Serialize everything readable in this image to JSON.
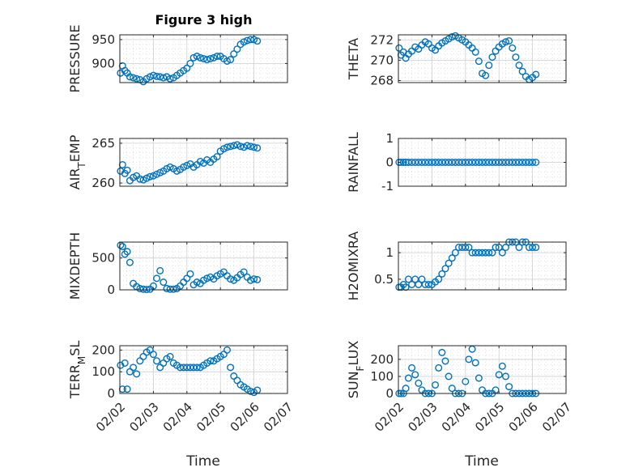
{
  "chart_data": [
    {
      "type": "scatter",
      "title": "Figure 3 high",
      "ylabel": "PRESSURE",
      "xlim": [
        0,
        5
      ],
      "ylim": [
        860,
        960
      ],
      "yticks": [
        {
          "v": 900,
          "label": "900"
        },
        {
          "v": 950,
          "label": "950"
        }
      ],
      "xticks": [
        {
          "v": 0,
          "label": "02/02"
        },
        {
          "v": 1,
          "label": "02/03"
        },
        {
          "v": 2,
          "label": "02/04"
        },
        {
          "v": 3,
          "label": "02/05"
        },
        {
          "v": 4,
          "label": "02/06"
        },
        {
          "v": 5,
          "label": "02/07"
        }
      ],
      "x": [
        0.02,
        0.08,
        0.15,
        0.22,
        0.3,
        0.4,
        0.5,
        0.6,
        0.7,
        0.8,
        0.9,
        1.0,
        1.1,
        1.2,
        1.3,
        1.4,
        1.5,
        1.6,
        1.7,
        1.8,
        1.9,
        2.0,
        2.1,
        2.2,
        2.3,
        2.4,
        2.5,
        2.6,
        2.7,
        2.8,
        2.9,
        3.0,
        3.1,
        3.2,
        3.3,
        3.4,
        3.5,
        3.6,
        3.7,
        3.8,
        3.9,
        4.0,
        4.1
      ],
      "y": [
        880,
        895,
        885,
        880,
        872,
        870,
        868,
        866,
        862,
        868,
        872,
        875,
        873,
        872,
        870,
        872,
        868,
        870,
        875,
        880,
        885,
        890,
        900,
        912,
        915,
        912,
        910,
        908,
        910,
        912,
        915,
        915,
        910,
        905,
        908,
        920,
        930,
        940,
        945,
        948,
        950,
        950,
        947
      ]
    },
    {
      "type": "scatter",
      "ylabel": "THETA",
      "xlim": [
        0,
        5
      ],
      "ylim": [
        267.8,
        272.5
      ],
      "yticks": [
        {
          "v": 268,
          "label": "268"
        },
        {
          "v": 270,
          "label": "270"
        },
        {
          "v": 272,
          "label": "272"
        }
      ],
      "xticks": [
        {
          "v": 0,
          "label": "02/02"
        },
        {
          "v": 1,
          "label": "02/03"
        },
        {
          "v": 2,
          "label": "02/04"
        },
        {
          "v": 3,
          "label": "02/05"
        },
        {
          "v": 4,
          "label": "02/06"
        },
        {
          "v": 5,
          "label": "02/07"
        }
      ],
      "x": [
        0.02,
        0.08,
        0.15,
        0.22,
        0.3,
        0.4,
        0.5,
        0.6,
        0.7,
        0.8,
        0.9,
        1.0,
        1.1,
        1.2,
        1.3,
        1.4,
        1.5,
        1.6,
        1.7,
        1.8,
        1.9,
        2.0,
        2.1,
        2.2,
        2.3,
        2.4,
        2.5,
        2.6,
        2.7,
        2.8,
        2.9,
        3.0,
        3.1,
        3.2,
        3.3,
        3.4,
        3.5,
        3.6,
        3.7,
        3.8,
        3.9,
        4.0,
        4.1
      ],
      "y": [
        271.2,
        270.5,
        270.8,
        270.2,
        270.6,
        270.9,
        271.3,
        271.1,
        271.5,
        271.8,
        271.6,
        271.2,
        271.0,
        271.4,
        271.7,
        271.9,
        272.1,
        272.3,
        272.4,
        272.2,
        272.0,
        271.8,
        271.5,
        271.2,
        270.8,
        269.9,
        268.7,
        268.5,
        269.5,
        270.3,
        270.9,
        271.3,
        271.6,
        271.8,
        271.9,
        271.2,
        270.3,
        269.5,
        268.9,
        268.4,
        268.1,
        268.3,
        268.6
      ]
    },
    {
      "type": "scatter",
      "ylabel": "AIR_TEMP",
      "xlim": [
        0,
        5
      ],
      "ylim": [
        259.6,
        265.6
      ],
      "yticks": [
        {
          "v": 260,
          "label": "260"
        },
        {
          "v": 265,
          "label": "265"
        }
      ],
      "xticks": [
        {
          "v": 0,
          "label": "02/02"
        },
        {
          "v": 1,
          "label": "02/03"
        },
        {
          "v": 2,
          "label": "02/04"
        },
        {
          "v": 3,
          "label": "02/05"
        },
        {
          "v": 4,
          "label": "02/06"
        },
        {
          "v": 5,
          "label": "02/07"
        }
      ],
      "x": [
        0.02,
        0.08,
        0.15,
        0.22,
        0.3,
        0.4,
        0.5,
        0.6,
        0.7,
        0.8,
        0.9,
        1.0,
        1.1,
        1.2,
        1.3,
        1.4,
        1.5,
        1.6,
        1.7,
        1.8,
        1.9,
        2.0,
        2.1,
        2.2,
        2.3,
        2.4,
        2.5,
        2.6,
        2.7,
        2.8,
        2.9,
        3.0,
        3.1,
        3.2,
        3.3,
        3.4,
        3.5,
        3.6,
        3.7,
        3.8,
        3.9,
        4.0,
        4.1
      ],
      "y": [
        261.5,
        262.3,
        261.2,
        261.6,
        260.3,
        260.7,
        260.9,
        260.5,
        260.4,
        260.6,
        260.8,
        260.9,
        261.1,
        261.3,
        261.5,
        261.8,
        262.0,
        261.8,
        261.5,
        261.7,
        262.0,
        262.2,
        262.4,
        262.0,
        262.3,
        262.7,
        262.5,
        262.9,
        262.6,
        263.0,
        263.3,
        264.0,
        264.3,
        264.5,
        264.6,
        264.7,
        264.8,
        264.6,
        264.5,
        264.7,
        264.6,
        264.5,
        264.4
      ]
    },
    {
      "type": "scatter",
      "ylabel": "RAINFALL",
      "xlim": [
        0,
        5
      ],
      "ylim": [
        -1,
        1
      ],
      "yticks": [
        {
          "v": -1,
          "label": "-1"
        },
        {
          "v": 0,
          "label": "0"
        },
        {
          "v": 1,
          "label": "1"
        }
      ],
      "xticks": [
        {
          "v": 0,
          "label": "02/02"
        },
        {
          "v": 1,
          "label": "02/03"
        },
        {
          "v": 2,
          "label": "02/04"
        },
        {
          "v": 3,
          "label": "02/05"
        },
        {
          "v": 4,
          "label": "02/06"
        },
        {
          "v": 5,
          "label": "02/07"
        }
      ],
      "x": [
        0.02,
        0.08,
        0.15,
        0.22,
        0.3,
        0.4,
        0.5,
        0.6,
        0.7,
        0.8,
        0.9,
        1.0,
        1.1,
        1.2,
        1.3,
        1.4,
        1.5,
        1.6,
        1.7,
        1.8,
        1.9,
        2.0,
        2.1,
        2.2,
        2.3,
        2.4,
        2.5,
        2.6,
        2.7,
        2.8,
        2.9,
        3.0,
        3.1,
        3.2,
        3.3,
        3.4,
        3.5,
        3.6,
        3.7,
        3.8,
        3.9,
        4.0,
        4.1
      ],
      "y": [
        0,
        0,
        0,
        0,
        0,
        0,
        0,
        0,
        0,
        0,
        0,
        0,
        0,
        0,
        0,
        0,
        0,
        0,
        0,
        0,
        0,
        0,
        0,
        0,
        0,
        0,
        0,
        0,
        0,
        0,
        0,
        0,
        0,
        0,
        0,
        0,
        0,
        0,
        0,
        0,
        0,
        0,
        0
      ]
    },
    {
      "type": "scatter",
      "ylabel": "MIXDEPTH",
      "xlim": [
        0,
        5
      ],
      "ylim": [
        0,
        750
      ],
      "yticks": [
        {
          "v": 0,
          "label": "0"
        },
        {
          "v": 500,
          "label": "500"
        }
      ],
      "xticks": [
        {
          "v": 0,
          "label": "02/02"
        },
        {
          "v": 1,
          "label": "02/03"
        },
        {
          "v": 2,
          "label": "02/04"
        },
        {
          "v": 3,
          "label": "02/05"
        },
        {
          "v": 4,
          "label": "02/06"
        },
        {
          "v": 5,
          "label": "02/07"
        }
      ],
      "x": [
        0.02,
        0.08,
        0.15,
        0.22,
        0.3,
        0.4,
        0.5,
        0.6,
        0.7,
        0.8,
        0.9,
        1.0,
        1.1,
        1.2,
        1.3,
        1.4,
        1.5,
        1.6,
        1.7,
        1.8,
        1.9,
        2.0,
        2.1,
        2.2,
        2.3,
        2.4,
        2.5,
        2.6,
        2.7,
        2.8,
        2.9,
        3.0,
        3.1,
        3.2,
        3.3,
        3.4,
        3.5,
        3.6,
        3.7,
        3.8,
        3.9,
        4.0,
        4.1
      ],
      "y": [
        700,
        680,
        560,
        600,
        430,
        100,
        50,
        20,
        10,
        5,
        10,
        60,
        180,
        300,
        120,
        20,
        10,
        10,
        20,
        60,
        120,
        180,
        250,
        80,
        120,
        100,
        150,
        180,
        200,
        170,
        220,
        250,
        280,
        220,
        170,
        150,
        190,
        240,
        280,
        200,
        150,
        170,
        160
      ]
    },
    {
      "type": "scatter",
      "ylabel": "H2OMIXRA",
      "xlim": [
        0,
        5
      ],
      "ylim": [
        0.3,
        1.2
      ],
      "yticks": [
        {
          "v": 0.5,
          "label": "0.5"
        },
        {
          "v": 1,
          "label": "1"
        }
      ],
      "xticks": [
        {
          "v": 0,
          "label": "02/02"
        },
        {
          "v": 1,
          "label": "02/03"
        },
        {
          "v": 2,
          "label": "02/04"
        },
        {
          "v": 3,
          "label": "02/05"
        },
        {
          "v": 4,
          "label": "02/06"
        },
        {
          "v": 5,
          "label": "02/07"
        }
      ],
      "x": [
        0.02,
        0.08,
        0.15,
        0.22,
        0.3,
        0.4,
        0.5,
        0.6,
        0.7,
        0.8,
        0.9,
        1.0,
        1.1,
        1.2,
        1.3,
        1.4,
        1.5,
        1.6,
        1.7,
        1.8,
        1.9,
        2.0,
        2.1,
        2.2,
        2.3,
        2.4,
        2.5,
        2.6,
        2.7,
        2.8,
        2.9,
        3.0,
        3.1,
        3.2,
        3.3,
        3.4,
        3.5,
        3.6,
        3.7,
        3.8,
        3.9,
        4.0,
        4.1
      ],
      "y": [
        0.35,
        0.35,
        0.4,
        0.35,
        0.5,
        0.4,
        0.5,
        0.4,
        0.5,
        0.4,
        0.4,
        0.4,
        0.45,
        0.5,
        0.6,
        0.7,
        0.8,
        0.9,
        1.0,
        1.1,
        1.1,
        1.1,
        1.1,
        1.0,
        1.0,
        1.0,
        1.0,
        1.0,
        1.0,
        1.0,
        1.1,
        1.1,
        1.0,
        1.1,
        1.2,
        1.2,
        1.2,
        1.1,
        1.2,
        1.2,
        1.1,
        1.1,
        1.1
      ]
    },
    {
      "type": "scatter",
      "ylabel": "TERR_MSL",
      "xlim": [
        0,
        5
      ],
      "ylim": [
        0,
        220
      ],
      "yticks": [
        {
          "v": 0,
          "label": "0"
        },
        {
          "v": 100,
          "label": "100"
        },
        {
          "v": 200,
          "label": "200"
        }
      ],
      "xticks": [
        {
          "v": 0,
          "label": "02/02"
        },
        {
          "v": 1,
          "label": "02/03"
        },
        {
          "v": 2,
          "label": "02/04"
        },
        {
          "v": 3,
          "label": "02/05"
        },
        {
          "v": 4,
          "label": "02/06"
        },
        {
          "v": 5,
          "label": "02/07"
        }
      ],
      "x": [
        0.02,
        0.08,
        0.15,
        0.22,
        0.3,
        0.4,
        0.5,
        0.6,
        0.7,
        0.8,
        0.9,
        1.0,
        1.1,
        1.2,
        1.3,
        1.4,
        1.5,
        1.6,
        1.7,
        1.8,
        1.9,
        2.0,
        2.1,
        2.2,
        2.3,
        2.4,
        2.5,
        2.6,
        2.7,
        2.8,
        2.9,
        3.0,
        3.1,
        3.2,
        3.3,
        3.4,
        3.5,
        3.6,
        3.7,
        3.8,
        3.9,
        4.0,
        4.1
      ],
      "y": [
        130,
        20,
        140,
        20,
        100,
        120,
        90,
        150,
        170,
        190,
        200,
        180,
        150,
        120,
        140,
        160,
        170,
        140,
        130,
        120,
        120,
        120,
        120,
        120,
        120,
        120,
        130,
        140,
        150,
        150,
        160,
        170,
        180,
        200,
        120,
        80,
        60,
        40,
        30,
        20,
        10,
        5,
        15
      ]
    },
    {
      "type": "scatter",
      "ylabel": "SUN_FLUX",
      "xlim": [
        0,
        5
      ],
      "ylim": [
        0,
        280
      ],
      "yticks": [
        {
          "v": 0,
          "label": "0"
        },
        {
          "v": 100,
          "label": "100"
        },
        {
          "v": 200,
          "label": "200"
        }
      ],
      "xticks": [
        {
          "v": 0,
          "label": "02/02"
        },
        {
          "v": 1,
          "label": "02/03"
        },
        {
          "v": 2,
          "label": "02/04"
        },
        {
          "v": 3,
          "label": "02/05"
        },
        {
          "v": 4,
          "label": "02/06"
        },
        {
          "v": 5,
          "label": "02/07"
        }
      ],
      "x": [
        0.02,
        0.08,
        0.15,
        0.22,
        0.3,
        0.4,
        0.5,
        0.6,
        0.7,
        0.8,
        0.9,
        1.0,
        1.1,
        1.2,
        1.3,
        1.4,
        1.5,
        1.6,
        1.7,
        1.8,
        1.9,
        2.0,
        2.1,
        2.2,
        2.3,
        2.4,
        2.5,
        2.6,
        2.7,
        2.8,
        2.9,
        3.0,
        3.1,
        3.2,
        3.3,
        3.4,
        3.5,
        3.6,
        3.7,
        3.8,
        3.9,
        4.0,
        4.1
      ],
      "y": [
        0,
        0,
        0,
        30,
        90,
        150,
        110,
        60,
        20,
        0,
        0,
        0,
        50,
        150,
        240,
        190,
        100,
        30,
        0,
        0,
        0,
        70,
        200,
        260,
        180,
        90,
        20,
        0,
        0,
        0,
        20,
        110,
        160,
        100,
        40,
        0,
        0,
        0,
        0,
        0,
        0,
        0,
        0
      ]
    }
  ],
  "xlabel_left": "Time",
  "xlabel_right": "Time",
  "colors": {
    "marker": "#0072BD",
    "axis": "#262626",
    "grid": "#dcdcdc"
  }
}
